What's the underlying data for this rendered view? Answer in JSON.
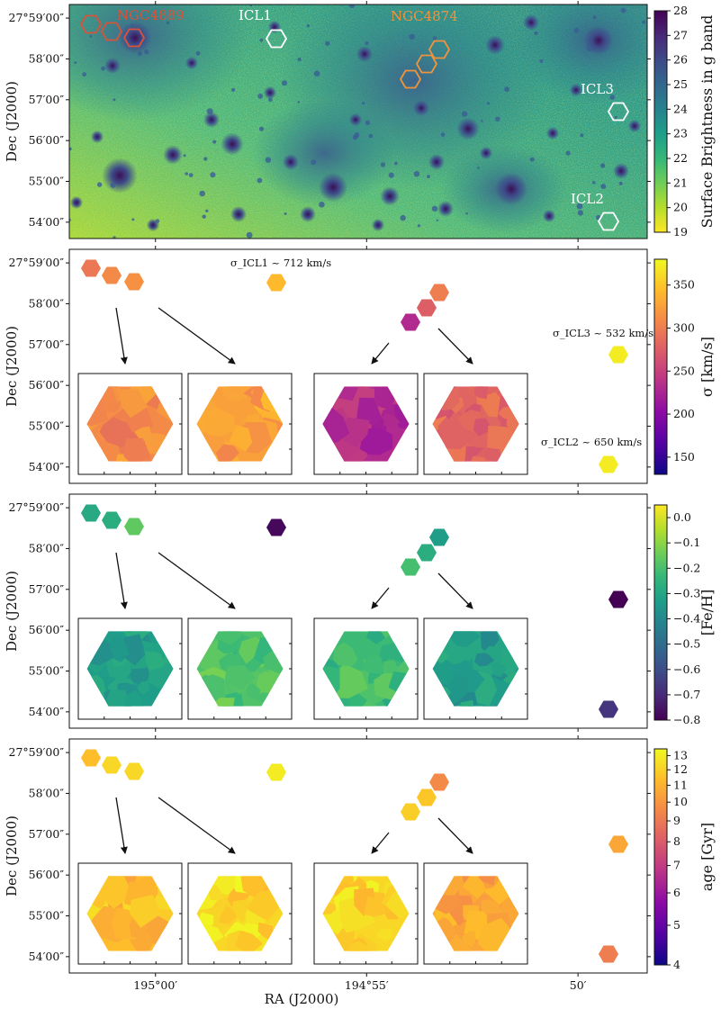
{
  "chart_data": {
    "type": "multi-panel-map",
    "x_axis": {
      "label": "RA (J2000)",
      "ticks": [
        "195°00′",
        "194°55′",
        "50′"
      ],
      "tick_values": [
        195.0,
        194.9167,
        194.8333
      ],
      "range": [
        195.034,
        194.806
      ]
    },
    "y_axis": {
      "label": "Dec (J2000)",
      "ticks": [
        "27°59′00″",
        "58′00″",
        "57′00″",
        "56′00″",
        "55′00″",
        "54′00″"
      ],
      "tick_values": [
        59,
        58,
        57,
        56,
        55,
        54
      ],
      "unit": "arcmin above 27°"
    },
    "panels": [
      {
        "id": "surface-brightness",
        "colormap": "viridis_r",
        "colorbar": {
          "label": "Surface Brightness in g band",
          "min": 19,
          "max": 28,
          "ticks": [
            "28",
            "27",
            "26",
            "25",
            "24",
            "23",
            "22",
            "21",
            "20",
            "19"
          ]
        },
        "annotations": [
          {
            "text": "NGC4889",
            "color": "#d9523a"
          },
          {
            "text": "ICL1",
            "color": "#ffffff"
          },
          {
            "text": "NGC4874",
            "color": "#f0943c"
          },
          {
            "text": "ICL3",
            "color": "#ffffff"
          },
          {
            "text": "ICL2",
            "color": "#ffffff"
          }
        ]
      },
      {
        "id": "velocity-dispersion",
        "colormap": "plasma",
        "colorbar": {
          "label": "σ [km/s]",
          "min": 130,
          "max": 380,
          "ticks": [
            "150",
            "200",
            "250",
            "300",
            "350"
          ]
        },
        "labels": [
          "σ_ICL1 ~ 712 km/s",
          "σ_ICL3 ~ 532 km/s",
          "σ_ICL2 ~ 650 km/s"
        ]
      },
      {
        "id": "metallicity",
        "colormap": "viridis",
        "colorbar": {
          "label": "[Fe/H]",
          "min": -0.8,
          "max": 0.05,
          "ticks": [
            "0.0",
            "−0.1",
            "−0.2",
            "−0.3",
            "−0.4",
            "−0.5",
            "−0.6",
            "−0.7",
            "−0.8"
          ]
        }
      },
      {
        "id": "age",
        "colormap": "plasma",
        "colorbar": {
          "label": "age [Gyr]",
          "min": 4,
          "max": 13,
          "scale": "log",
          "ticks": [
            "4",
            "5",
            "6",
            "7",
            "8",
            "9",
            "10",
            "11",
            "12",
            "13"
          ]
        }
      }
    ]
  }
}
